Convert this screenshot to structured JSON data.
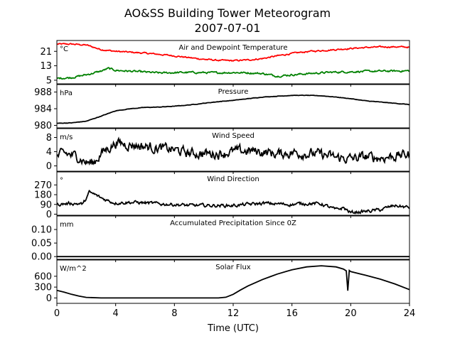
{
  "chart_data": {
    "type": "line",
    "title": "AO&SS Building Tower Meteorogram",
    "subtitle": "2007-07-01",
    "xlabel": "Time (UTC)",
    "xlim": [
      0,
      24
    ],
    "xticks": [
      0,
      4,
      8,
      12,
      16,
      20,
      24
    ],
    "panels": [
      {
        "title": "Air and Dewpoint Temperature",
        "unit": "°C",
        "ylim": [
          3,
          27
        ],
        "yticks": [
          5,
          13,
          21
        ],
        "series": [
          {
            "color": "#ff0000",
            "noise": 0.3,
            "x": [
              0,
              1,
              2,
              3,
              4,
              5,
              6,
              7,
              8,
              9,
              10,
              11,
              12,
              13,
              14,
              15,
              16,
              17,
              18,
              19,
              20,
              21,
              22,
              23,
              24
            ],
            "y": [
              25,
              25,
              24.5,
              22,
              21,
              20.5,
              20,
              19.3,
              18.5,
              17.5,
              16.6,
              16,
              15.8,
              16.2,
              17,
              18.5,
              19.8,
              20.8,
              21.4,
              22,
              22.6,
              23.1,
              23.4,
              23.5,
              23.3
            ]
          },
          {
            "color": "#008000",
            "noise": 0.4,
            "x": [
              0,
              1,
              2,
              3,
              3.5,
              4,
              5,
              6,
              7,
              8,
              9,
              10,
              11,
              12,
              13,
              14,
              15,
              16,
              17,
              18,
              19,
              20,
              21,
              22,
              23,
              24
            ],
            "y": [
              6,
              6.5,
              8,
              10,
              11.5,
              10.5,
              10,
              9.5,
              9,
              9.2,
              9.3,
              9.2,
              9.1,
              9.3,
              9.1,
              8.7,
              7.3,
              8,
              8.6,
              9.1,
              9.5,
              9.7,
              9.9,
              10,
              10.1,
              10.2
            ]
          }
        ]
      },
      {
        "title": "Pressure",
        "unit": "hPa",
        "ylim": [
          979.4,
          989.8
        ],
        "yticks": [
          980,
          984,
          988
        ],
        "series": [
          {
            "color": "#000000",
            "noise": 0.04,
            "x": [
              0,
              1,
              2,
              3,
              4,
              5,
              6,
              7,
              8,
              9,
              10,
              11,
              12,
              13,
              14,
              15,
              16,
              17,
              18,
              19,
              20,
              21,
              22,
              23,
              24
            ],
            "y": [
              980.5,
              980.6,
              981,
              982.2,
              983.5,
              984,
              984.3,
              984.4,
              984.6,
              984.9,
              985.3,
              985.7,
              986,
              986.4,
              986.8,
              987,
              987.2,
              987.2,
              987.1,
              986.8,
              986.4,
              985.9,
              985.6,
              985.3,
              985
            ]
          }
        ]
      },
      {
        "title": "Wind Speed",
        "unit": "m/s",
        "ylim": [
          -1.5,
          10.5
        ],
        "yticks": [
          0,
          4,
          8
        ],
        "series": [
          {
            "color": "#000000",
            "noise": 1.1,
            "x": [
              0,
              0.5,
              1,
              1.5,
              2,
              2.5,
              3,
              3.5,
              4,
              5,
              6,
              7,
              8,
              9,
              10,
              11,
              12,
              13,
              14,
              15,
              16,
              17,
              18,
              19,
              20,
              21,
              22,
              23,
              24
            ],
            "y": [
              2.5,
              3.5,
              3,
              2.5,
              1,
              0.8,
              3.5,
              5,
              6.5,
              6,
              5.5,
              5,
              4.5,
              3.5,
              3.5,
              3.5,
              4,
              4.2,
              4,
              3.3,
              3.8,
              3.5,
              3.2,
              2.3,
              2,
              2.5,
              2.3,
              2.8,
              3.3
            ]
          }
        ]
      },
      {
        "title": "Wind Direction",
        "unit": "°",
        "ylim": [
          -10,
          390
        ],
        "yticks": [
          0,
          90,
          180,
          270
        ],
        "series": [
          {
            "color": "#000000",
            "noise": 12,
            "x": [
              0,
              1,
              1.8,
              2.2,
              2.6,
              3,
              3.4,
              3.8,
              4,
              5,
              6,
              7,
              8,
              9,
              10,
              11,
              12,
              13,
              14,
              15,
              16,
              17,
              18,
              19,
              19.5,
              20,
              21,
              22,
              22.5,
              23,
              24
            ],
            "y": [
              90,
              100,
              95,
              200,
              180,
              150,
              130,
              110,
              105,
              110,
              105,
              95,
              90,
              80,
              80,
              80,
              80,
              90,
              100,
              95,
              90,
              100,
              95,
              40,
              60,
              15,
              25,
              40,
              60,
              80,
              60
            ]
          }
        ]
      },
      {
        "title": "Accumulated Precipitation Since 0Z",
        "unit": "mm",
        "ylim": [
          -0.01,
          0.15
        ],
        "yticks": [
          0.0,
          0.05,
          0.1
        ],
        "ytick_labels": [
          "0.00",
          "0.05",
          "0.10"
        ],
        "series": [
          {
            "color": "#000000",
            "noise": 0,
            "x": [
              0,
              24
            ],
            "y": [
              0,
              0
            ]
          }
        ]
      },
      {
        "title": "Solar Flux",
        "unit": "W/m^2",
        "ylim": [
          -150,
          1050
        ],
        "yticks": [
          0,
          300,
          600
        ],
        "series": [
          {
            "color": "#000000",
            "noise": 0,
            "x": [
              0,
              0.5,
              1,
              1.5,
              2,
              3,
              6,
              10,
              11,
              11.5,
              12,
              12.5,
              13,
              14,
              15,
              16,
              17,
              18,
              19,
              19.5,
              19.7,
              19.8,
              19.9,
              20,
              21,
              22,
              23,
              24
            ],
            "y": [
              210,
              160,
              100,
              50,
              15,
              0,
              0,
              0,
              0,
              20,
              100,
              220,
              330,
              510,
              660,
              780,
              860,
              890,
              860,
              800,
              750,
              200,
              760,
              730,
              630,
              520,
              390,
              230
            ]
          }
        ]
      }
    ]
  }
}
